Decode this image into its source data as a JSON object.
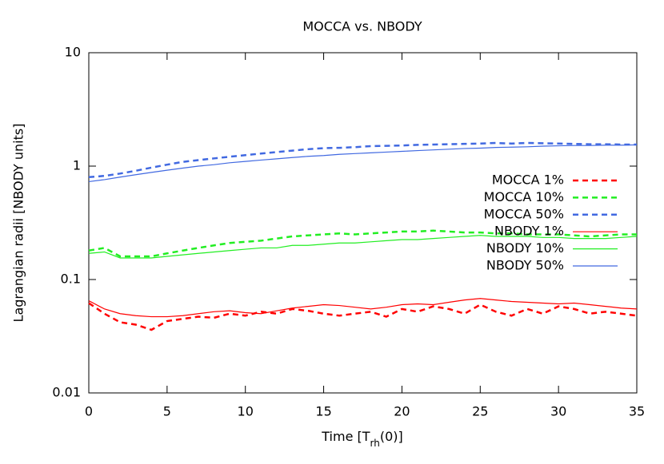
{
  "chart_data": {
    "type": "line",
    "title": "MOCCA vs. NBODY",
    "x_label": [
      "Time [T",
      "rh",
      "(0)]"
    ],
    "y_label": "Lagrangian radii [NBODY units]",
    "log_y": true,
    "legend": "right",
    "xlim": [
      0,
      35
    ],
    "xticks": [
      0,
      5,
      10,
      15,
      20,
      25,
      30,
      35
    ],
    "ylim": [
      0.01,
      10
    ],
    "yticks": [
      0.01,
      0.1,
      1,
      10
    ],
    "x": [
      0,
      1,
      2,
      3,
      4,
      5,
      6,
      7,
      8,
      9,
      10,
      11,
      12,
      13,
      14,
      15,
      16,
      17,
      18,
      19,
      20,
      21,
      22,
      23,
      24,
      25,
      26,
      27,
      28,
      29,
      30,
      31,
      32,
      33,
      34,
      35
    ],
    "series": [
      {
        "name": "MOCCA 1%",
        "color": "#ff0000",
        "dash": true,
        "values": [
          0.062,
          0.05,
          0.042,
          0.04,
          0.036,
          0.043,
          0.045,
          0.047,
          0.046,
          0.05,
          0.048,
          0.052,
          0.05,
          0.055,
          0.053,
          0.05,
          0.048,
          0.05,
          0.052,
          0.047,
          0.055,
          0.052,
          0.058,
          0.055,
          0.05,
          0.06,
          0.052,
          0.048,
          0.055,
          0.05,
          0.058,
          0.055,
          0.05,
          0.052,
          0.05,
          0.048
        ]
      },
      {
        "name": "MOCCA 10%",
        "color": "#22ee22",
        "dash": true,
        "values": [
          0.18,
          0.19,
          0.16,
          0.16,
          0.16,
          0.17,
          0.18,
          0.19,
          0.2,
          0.21,
          0.215,
          0.22,
          0.23,
          0.24,
          0.245,
          0.25,
          0.255,
          0.25,
          0.255,
          0.26,
          0.265,
          0.265,
          0.27,
          0.265,
          0.26,
          0.26,
          0.255,
          0.255,
          0.25,
          0.25,
          0.25,
          0.245,
          0.24,
          0.245,
          0.25,
          0.25
        ]
      },
      {
        "name": "MOCCA 50%",
        "color": "#4169e1",
        "dash": true,
        "values": [
          0.8,
          0.82,
          0.86,
          0.91,
          0.97,
          1.03,
          1.09,
          1.13,
          1.17,
          1.21,
          1.25,
          1.29,
          1.33,
          1.37,
          1.41,
          1.44,
          1.45,
          1.47,
          1.5,
          1.51,
          1.52,
          1.54,
          1.55,
          1.56,
          1.57,
          1.58,
          1.6,
          1.58,
          1.6,
          1.59,
          1.58,
          1.57,
          1.56,
          1.56,
          1.55,
          1.55
        ]
      },
      {
        "name": "NBODY 1%",
        "color": "#ff0000",
        "dash": false,
        "values": [
          0.065,
          0.055,
          0.05,
          0.048,
          0.047,
          0.047,
          0.048,
          0.05,
          0.052,
          0.053,
          0.051,
          0.05,
          0.053,
          0.056,
          0.058,
          0.06,
          0.059,
          0.057,
          0.055,
          0.057,
          0.06,
          0.061,
          0.06,
          0.063,
          0.066,
          0.068,
          0.066,
          0.064,
          0.063,
          0.062,
          0.061,
          0.062,
          0.06,
          0.058,
          0.056,
          0.055
        ]
      },
      {
        "name": "NBODY 10%",
        "color": "#22ee22",
        "dash": false,
        "values": [
          0.17,
          0.175,
          0.155,
          0.155,
          0.155,
          0.16,
          0.165,
          0.17,
          0.175,
          0.18,
          0.185,
          0.19,
          0.19,
          0.2,
          0.2,
          0.205,
          0.21,
          0.21,
          0.215,
          0.22,
          0.225,
          0.225,
          0.23,
          0.235,
          0.24,
          0.245,
          0.24,
          0.24,
          0.24,
          0.235,
          0.235,
          0.23,
          0.23,
          0.23,
          0.235,
          0.24
        ]
      },
      {
        "name": "NBODY 50%",
        "color": "#4169e1",
        "dash": false,
        "values": [
          0.73,
          0.76,
          0.8,
          0.84,
          0.88,
          0.92,
          0.96,
          1.0,
          1.03,
          1.07,
          1.1,
          1.13,
          1.16,
          1.19,
          1.22,
          1.24,
          1.27,
          1.29,
          1.31,
          1.33,
          1.35,
          1.37,
          1.39,
          1.41,
          1.43,
          1.44,
          1.46,
          1.47,
          1.48,
          1.5,
          1.51,
          1.52,
          1.52,
          1.53,
          1.53,
          1.54
        ]
      }
    ]
  }
}
